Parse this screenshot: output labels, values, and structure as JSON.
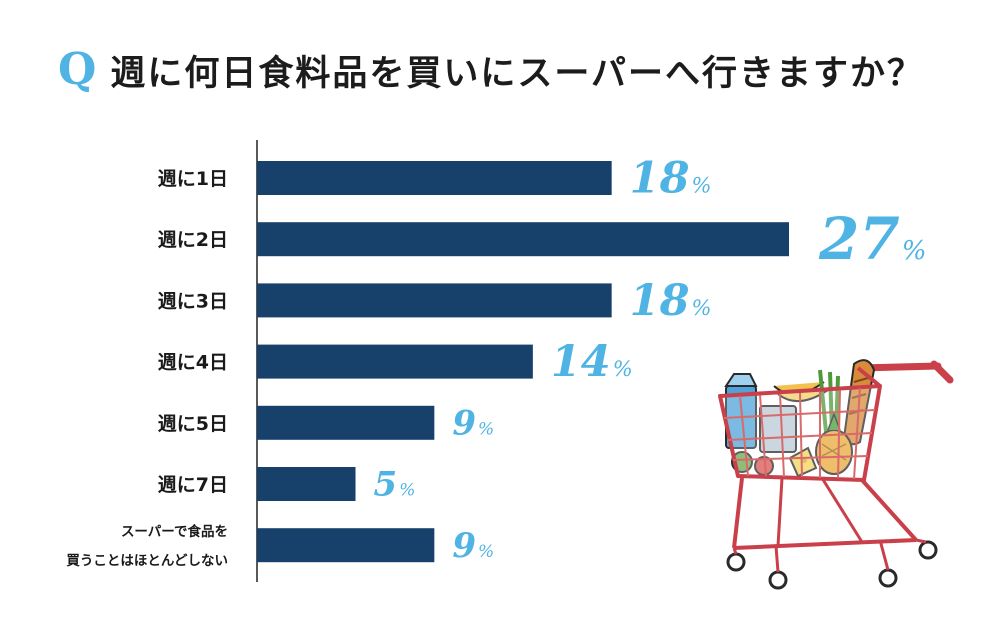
{
  "title": {
    "q_mark": "Q",
    "question": "週に何日食料品を買いにスーパーへ行きますか？"
  },
  "colors": {
    "bar": "#17406b",
    "value": "#4fb3e4",
    "label": "#1a1a1a",
    "axis": "#222222"
  },
  "illustration": {
    "icon": "shopping-cart-icon"
  },
  "chart_data": {
    "type": "bar",
    "orientation": "horizontal",
    "categories": [
      [
        "週に1日"
      ],
      [
        "週に2日"
      ],
      [
        "週に3日"
      ],
      [
        "週に4日"
      ],
      [
        "週に5日"
      ],
      [
        "週に7日"
      ],
      [
        "スーパーで食品を",
        "買うことはほとんどしない"
      ]
    ],
    "values": [
      18,
      27,
      18,
      14,
      9,
      5,
      9
    ],
    "unit": "%",
    "title": "週に何日食料品を買いにスーパーへ行きますか？",
    "xlabel": "",
    "ylabel": "",
    "xlim": [
      0,
      27
    ],
    "grid": false,
    "legend": "none"
  }
}
